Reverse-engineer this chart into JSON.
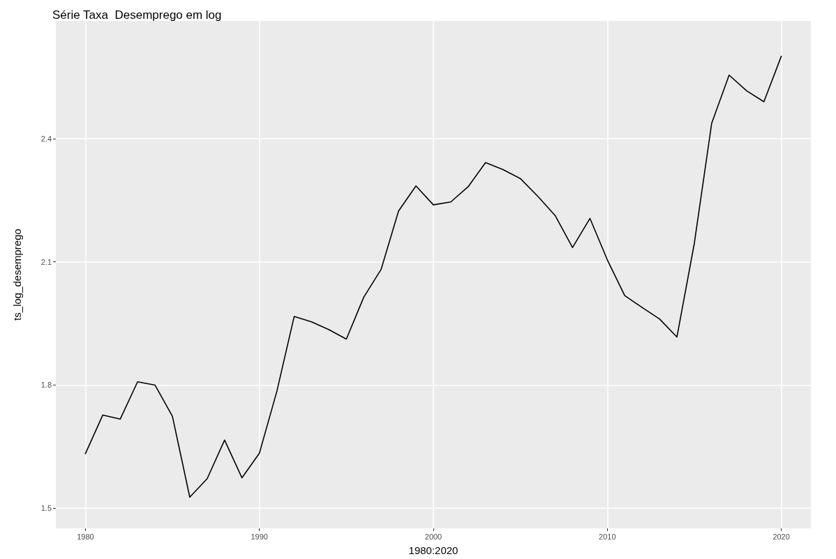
{
  "chart_data": {
    "type": "line",
    "title": "Série Taxa  Desemprego em log",
    "xlabel": "1980:2020",
    "ylabel": "ts_log_desemprego",
    "x": [
      1980,
      1981,
      1982,
      1983,
      1984,
      1985,
      1986,
      1987,
      1988,
      1989,
      1990,
      1991,
      1992,
      1993,
      1994,
      1995,
      1996,
      1997,
      1998,
      1999,
      2000,
      2001,
      2002,
      2003,
      2004,
      2005,
      2006,
      2007,
      2008,
      2009,
      2010,
      2011,
      2012,
      2013,
      2014,
      2015,
      2016,
      2017,
      2018,
      2019,
      2020
    ],
    "series": [
      {
        "color": "#000000",
        "values": [
          1.633,
          1.727,
          1.717,
          1.808,
          1.8,
          1.724,
          1.527,
          1.572,
          1.666,
          1.574,
          1.634,
          1.784,
          1.967,
          1.954,
          1.935,
          1.912,
          2.014,
          2.082,
          2.224,
          2.285,
          2.239,
          2.246,
          2.283,
          2.342,
          2.325,
          2.303,
          2.26,
          2.213,
          2.135,
          2.206,
          2.105,
          2.018,
          1.989,
          1.961,
          1.917,
          2.145,
          2.438,
          2.555,
          2.517,
          2.49,
          2.601
        ]
      }
    ],
    "xlim": [
      1978.3,
      2021.7
    ],
    "xticks": [
      1980,
      1990,
      2000,
      2010,
      2020
    ],
    "ylim": [
      1.451,
      2.687
    ],
    "yticks": [
      1.5,
      1.8,
      2.1,
      2.4
    ],
    "grid": true,
    "marker": "none",
    "line_style": "solid"
  }
}
